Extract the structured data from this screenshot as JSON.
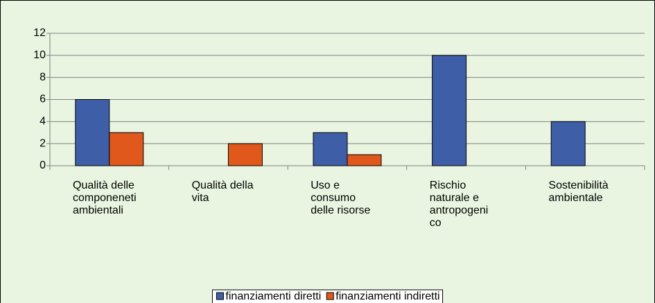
{
  "chart_data": {
    "type": "bar",
    "categories": [
      "Qualità delle componeneti ambientali",
      "Qualità della vita",
      "Uso e consumo delle risorse",
      "Rischio naturale e antropogenico",
      "Sostenibilità ambientale"
    ],
    "series": [
      {
        "name": "finanziamenti diretti",
        "color": "#3f5ea8",
        "values": [
          6,
          0,
          3,
          10,
          4
        ]
      },
      {
        "name": "finanziamenti indiretti",
        "color": "#e0581c",
        "values": [
          3,
          2,
          1,
          0,
          0
        ]
      }
    ],
    "ylim": [
      0,
      12
    ],
    "yticks": [
      0,
      2,
      4,
      6,
      8,
      10,
      12
    ],
    "grid": true,
    "legend": "bottom"
  }
}
